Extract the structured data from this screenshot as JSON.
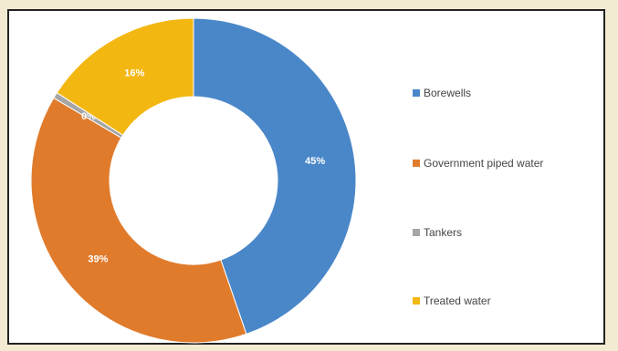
{
  "chart_data": {
    "type": "pie",
    "style": "donut",
    "categories": [
      "Borewells",
      "Government piped water",
      "Tankers",
      "Treated water"
    ],
    "values": [
      45,
      39,
      0,
      16
    ],
    "data_labels": [
      "45%",
      "39%",
      "0%",
      "16%"
    ],
    "colors": [
      "#4a87c9",
      "#e07b2c",
      "#a5a5a5",
      "#f3b712"
    ],
    "legend_position": "right"
  }
}
